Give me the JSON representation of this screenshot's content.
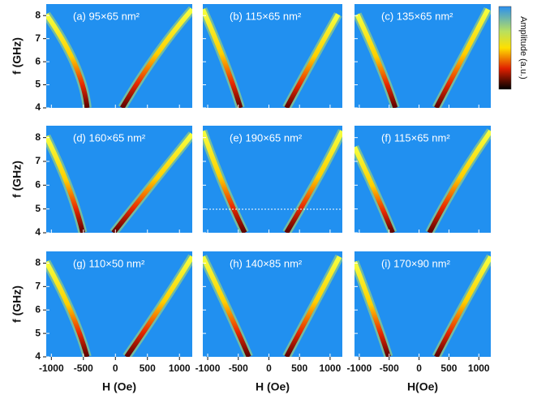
{
  "chart_data": [
    {
      "type": "heatmap",
      "title": "(a) 95×65 nm²",
      "ylabel": "f (GHz)",
      "xlim": [
        -1080,
        1200
      ],
      "ylim": [
        4,
        8.5
      ],
      "xticks": [
        -1000,
        -500,
        0,
        500,
        1000
      ],
      "yticks": [
        4,
        5,
        6,
        7,
        8
      ]
    },
    {
      "type": "heatmap",
      "title": "(b) 115×65 nm²",
      "xlim": [
        -1080,
        1200
      ],
      "ylim": [
        4,
        8.5
      ],
      "xticks": [
        -1000,
        -500,
        0,
        500,
        1000
      ],
      "yticks": [
        4,
        5,
        6,
        7,
        8
      ]
    },
    {
      "type": "heatmap",
      "title": "(c) 135×65 nm²",
      "xlim": [
        -1080,
        1200
      ],
      "ylim": [
        4,
        8.5
      ],
      "xticks": [
        -1000,
        -500,
        0,
        500,
        1000
      ],
      "yticks": [
        4,
        5,
        6,
        7,
        8
      ]
    },
    {
      "type": "heatmap",
      "title": "(d) 160×65 nm²",
      "ylabel": "f (GHz)",
      "xlim": [
        -1080,
        1200
      ],
      "ylim": [
        4,
        8.5
      ],
      "xticks": [
        -1000,
        -500,
        0,
        500,
        1000
      ],
      "yticks": [
        4,
        5,
        6,
        7,
        8
      ]
    },
    {
      "type": "heatmap",
      "title": "(e) 190×65 nm²",
      "xlim": [
        -1080,
        1200
      ],
      "ylim": [
        4,
        8.5
      ],
      "xticks": [
        -1000,
        -500,
        0,
        500,
        1000
      ],
      "yticks": [
        4,
        5,
        6,
        7,
        8
      ]
    },
    {
      "type": "heatmap",
      "title": "(f) 115×65 nm²",
      "xlim": [
        -1080,
        1200
      ],
      "ylim": [
        4,
        8.5
      ],
      "xticks": [
        -1000,
        -500,
        0,
        500,
        1000
      ],
      "yticks": [
        4,
        5,
        6,
        7,
        8
      ]
    },
    {
      "type": "heatmap",
      "title": "(g) 110×50 nm²",
      "ylabel": "f (GHz)",
      "xlabel": "H (Oe)",
      "xlim": [
        -1080,
        1200
      ],
      "ylim": [
        4,
        8.5
      ],
      "xticks": [
        -1000,
        -500,
        0,
        500,
        1000
      ],
      "yticks": [
        4,
        5,
        6,
        7,
        8
      ]
    },
    {
      "type": "heatmap",
      "title": "(h) 140×85 nm²",
      "xlabel": "H (Oe)",
      "xlim": [
        -1080,
        1200
      ],
      "ylim": [
        4,
        8.5
      ],
      "xticks": [
        -1000,
        -500,
        0,
        500,
        1000
      ],
      "yticks": [
        4,
        5,
        6,
        7,
        8
      ]
    },
    {
      "type": "heatmap",
      "title": "(i) 170×90 nm²",
      "xlabel": "H(Oe)",
      "xlim": [
        -1080,
        1200
      ],
      "ylim": [
        4,
        8.5
      ],
      "xticks": [
        -1000,
        -500,
        0,
        500,
        1000
      ],
      "yticks": [
        4,
        5,
        6,
        7,
        8
      ]
    }
  ],
  "colorbar": {
    "label": "Amplitude (a.u.)"
  }
}
